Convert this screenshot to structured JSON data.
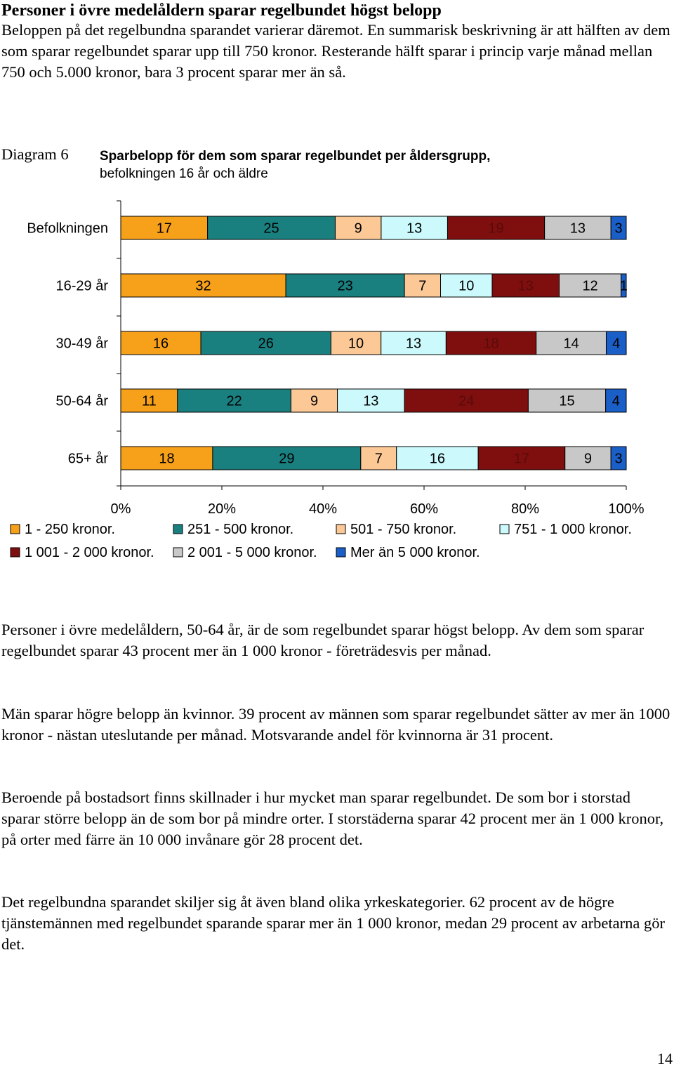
{
  "heading": "Personer i övre medelåldern sparar regelbundet högst belopp",
  "intro": "Beloppen på det regelbundna sparandet varierar däremot. En summarisk beskrivning är att hälften av dem som sparar regelbundet sparar upp till 750 kronor. Resterande hälft sparar i princip varje månad mellan 750 och 5.000 kronor, bara 3 procent sparar mer än så.",
  "diagram_label": "Diagram 6",
  "chart_title_line1": "Sparbelopp för dem som sparar regelbundet per åldersgrupp,",
  "chart_title_line2": "befolkningen 16 år och äldre",
  "chart_data": {
    "type": "bar",
    "orientation": "horizontal",
    "stacked": "percent",
    "categories": [
      "Befolkningen",
      "16-29 år",
      "30-49 år",
      "50-64 år",
      "65+ år"
    ],
    "series": [
      {
        "name": "1 - 250 kronor.",
        "values": [
          17,
          32,
          16,
          11,
          18
        ],
        "color": "#f7a11a",
        "label_color": "#000000"
      },
      {
        "name": "251 - 500 kronor.",
        "values": [
          25,
          23,
          26,
          22,
          29
        ],
        "color": "#1a7f7f",
        "label_color": "#000000"
      },
      {
        "name": "501 - 750 kronor.",
        "values": [
          9,
          7,
          10,
          9,
          7
        ],
        "color": "#fcc996",
        "label_color": "#000000"
      },
      {
        "name": "751 - 1 000 kronor.",
        "values": [
          13,
          10,
          13,
          13,
          16
        ],
        "color": "#ccfafc",
        "label_color": "#000000"
      },
      {
        "name": "1 001 - 2 000 kronor.",
        "values": [
          19,
          13,
          18,
          24,
          17
        ],
        "color": "#7f0f0f",
        "label_color": "#5a0a0a"
      },
      {
        "name": "2 001 - 5 000 kronor.",
        "values": [
          13,
          12,
          14,
          15,
          9
        ],
        "color": "#c8c8c8",
        "label_color": "#000000"
      },
      {
        "name": "Mer än 5 000 kronor.",
        "values": [
          3,
          1,
          4,
          4,
          3
        ],
        "color": "#1a5fc8",
        "label_color": "#000000"
      }
    ],
    "xlim": [
      0,
      100
    ],
    "xticks": [
      "0%",
      "20%",
      "40%",
      "60%",
      "80%",
      "100%"
    ],
    "grid": false,
    "legend_position": "bottom"
  },
  "p1": "Personer i övre medelåldern, 50-64 år, är de som regelbundet sparar högst belopp. Av dem som sparar regelbundet sparar 43 procent mer än 1 000 kronor - företrädesvis per månad.",
  "p2": "Män sparar högre belopp än kvinnor. 39 procent av männen som sparar regelbundet sätter av mer än 1000 kronor - nästan uteslutande per månad. Motsvarande andel för kvinnorna är 31 procent.",
  "p3": "Beroende på bostadsort finns skillnader i hur mycket man sparar regelbundet. De som bor i storstad sparar större belopp än de som bor på mindre orter. I storstäderna sparar 42 procent mer än 1 000 kronor, på orter med färre än 10 000 invånare gör 28 procent det.",
  "p4": "Det regelbundna sparandet skiljer sig åt även bland olika yrkeskategorier. 62 procent av de högre tjänstemännen med regelbundet sparande sparar mer än 1 000 kronor, medan 29 procent av arbetarna gör det.",
  "page_number": "14"
}
